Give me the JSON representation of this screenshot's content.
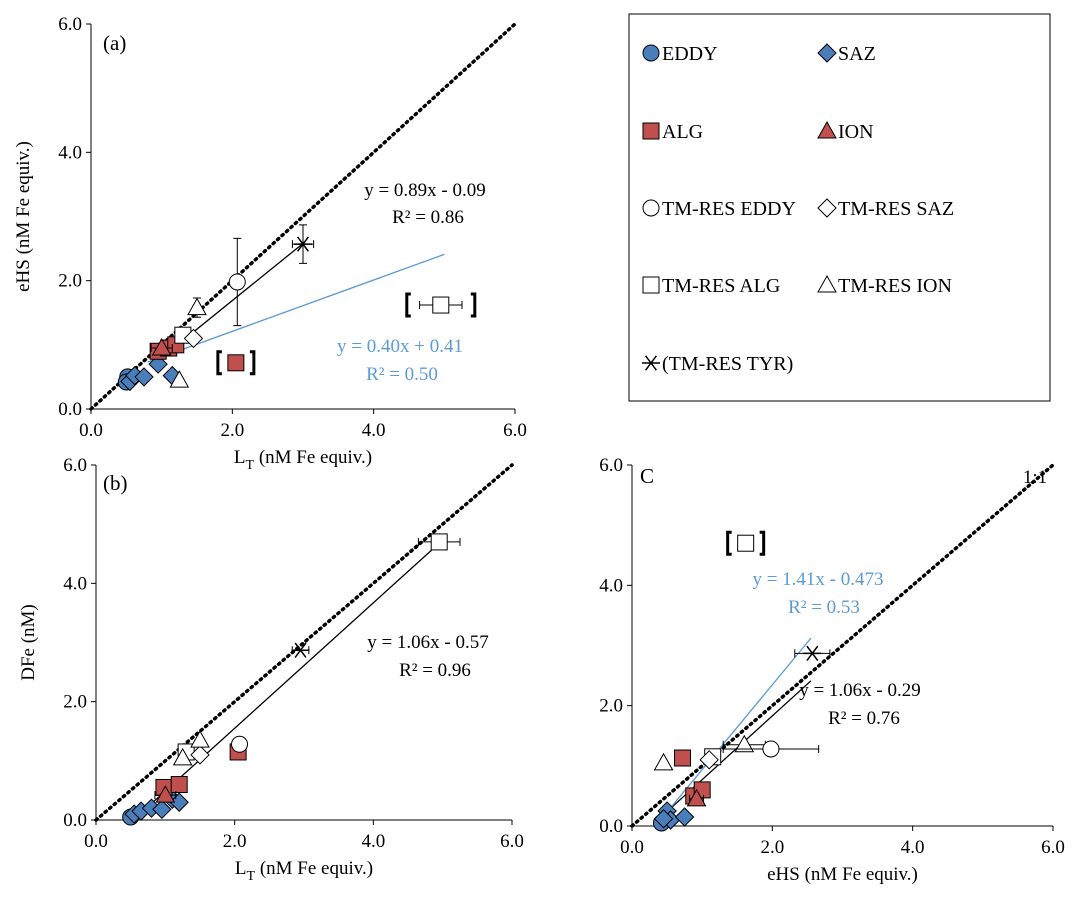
{
  "colors": {
    "blue": "#4a7ebb",
    "red": "#c0504d",
    "fitblue": "#5b9bd5",
    "black": "#000000"
  },
  "legend": [
    {
      "label": "EDDY",
      "marker": "circle",
      "fill": "#4a7ebb"
    },
    {
      "label": "SAZ",
      "marker": "diamond",
      "fill": "#4a7ebb"
    },
    {
      "label": "ALG",
      "marker": "square",
      "fill": "#c0504d"
    },
    {
      "label": "ION",
      "marker": "triangle",
      "fill": "#c0504d"
    },
    {
      "label": "TM-RES EDDY",
      "marker": "circle",
      "fill": "#ffffff"
    },
    {
      "label": "TM-RES SAZ",
      "marker": "diamond",
      "fill": "#ffffff"
    },
    {
      "label": "TM-RES ALG",
      "marker": "square",
      "fill": "#ffffff"
    },
    {
      "label": "TM-RES ION",
      "marker": "triangle",
      "fill": "#ffffff"
    },
    {
      "label": "(TM-RES TYR)",
      "marker": "star",
      "fill": "none"
    }
  ],
  "chart_data": [
    {
      "type": "scatter",
      "panel_label": "(a)",
      "xlabel": "L",
      "xlabel_sub": "T",
      "xlabel_rest": " (nM Fe equiv.)",
      "ylabel": "eHS (nM Fe equiv.)",
      "xlim": [
        0,
        6
      ],
      "ylim": [
        0,
        6
      ],
      "xticks": [
        "0.0",
        "2.0",
        "4.0",
        "6.0"
      ],
      "yticks": [
        "0.0",
        "2.0",
        "4.0",
        "6.0"
      ],
      "one_to_one": true,
      "fits": [
        {
          "slope": 0.89,
          "intercept": -0.09,
          "x": [
            0.9,
            3.0
          ],
          "color": "#000000",
          "eq": "y = 0.89x - 0.09",
          "r2": "R² = 0.86"
        },
        {
          "slope": 0.4,
          "intercept": 0.41,
          "x": [
            0.8,
            5.0
          ],
          "color": "#5b9bd5",
          "eq": "y = 0.40x + 0.41",
          "r2": "R² = 0.50"
        }
      ],
      "points": [
        {
          "x": 0.52,
          "y": 0.5,
          "m": "circle",
          "fill": "#4a7ebb"
        },
        {
          "x": 0.5,
          "y": 0.42,
          "m": "circle",
          "fill": "#4a7ebb"
        },
        {
          "x": 0.55,
          "y": 0.43,
          "m": "diamond",
          "fill": "#4a7ebb"
        },
        {
          "x": 0.62,
          "y": 0.52,
          "m": "diamond",
          "fill": "#4a7ebb"
        },
        {
          "x": 0.75,
          "y": 0.5,
          "m": "diamond",
          "fill": "#4a7ebb"
        },
        {
          "x": 0.95,
          "y": 0.7,
          "m": "diamond",
          "fill": "#4a7ebb"
        },
        {
          "x": 1.15,
          "y": 0.52,
          "m": "diamond",
          "fill": "#4a7ebb"
        },
        {
          "x": 0.95,
          "y": 0.9,
          "m": "square",
          "fill": "#c0504d",
          "xerr": 0.1
        },
        {
          "x": 1.1,
          "y": 0.95,
          "m": "square",
          "fill": "#c0504d",
          "xerr": 0.1
        },
        {
          "x": 1.2,
          "y": 1.0,
          "m": "square",
          "fill": "#c0504d"
        },
        {
          "x": 1.0,
          "y": 0.95,
          "m": "triangle",
          "fill": "#c0504d",
          "xerr": 0.15
        },
        {
          "x": 2.05,
          "y": 0.72,
          "m": "square",
          "fill": "#c0504d",
          "bracket": true
        },
        {
          "x": 1.3,
          "y": 1.15,
          "m": "square",
          "fill": "#ffffff"
        },
        {
          "x": 1.45,
          "y": 1.1,
          "m": "diamond",
          "fill": "#ffffff"
        },
        {
          "x": 1.5,
          "y": 1.58,
          "m": "triangle",
          "fill": "#ffffff",
          "yerr": 0.15
        },
        {
          "x": 1.25,
          "y": 0.45,
          "m": "triangle",
          "fill": "#ffffff"
        },
        {
          "x": 2.07,
          "y": 1.98,
          "m": "circle",
          "fill": "#ffffff",
          "yerr": 0.68
        },
        {
          "x": 3.0,
          "y": 2.57,
          "m": "star",
          "fill": "none",
          "xerr": 0.15,
          "yerr": 0.3
        },
        {
          "x": 4.95,
          "y": 1.62,
          "m": "square",
          "fill": "#ffffff",
          "xerr": 0.3,
          "bracket": true
        }
      ]
    },
    {
      "type": "scatter",
      "panel_label": "(b)",
      "xlabel": "L",
      "xlabel_sub": "T",
      "xlabel_rest": " (nM Fe equiv.)",
      "ylabel": "DFe (nM)",
      "xlim": [
        0,
        6
      ],
      "ylim": [
        0,
        6
      ],
      "xticks": [
        "0.0",
        "2.0",
        "4.0",
        "6.0"
      ],
      "yticks": [
        "0.0",
        "2.0",
        "4.0",
        "6.0"
      ],
      "one_to_one": true,
      "fits": [
        {
          "slope": 1.06,
          "intercept": -0.57,
          "x": [
            0.75,
            4.95
          ],
          "color": "#000000",
          "eq": "y = 1.06x - 0.57",
          "r2": "R² = 0.96"
        }
      ],
      "points": [
        {
          "x": 0.5,
          "y": 0.05,
          "m": "circle",
          "fill": "#4a7ebb"
        },
        {
          "x": 0.55,
          "y": 0.1,
          "m": "diamond",
          "fill": "#4a7ebb"
        },
        {
          "x": 0.65,
          "y": 0.15,
          "m": "diamond",
          "fill": "#4a7ebb"
        },
        {
          "x": 0.8,
          "y": 0.2,
          "m": "diamond",
          "fill": "#4a7ebb"
        },
        {
          "x": 0.95,
          "y": 0.18,
          "m": "diamond",
          "fill": "#4a7ebb"
        },
        {
          "x": 1.1,
          "y": 0.35,
          "m": "diamond",
          "fill": "#4a7ebb"
        },
        {
          "x": 1.2,
          "y": 0.3,
          "m": "diamond",
          "fill": "#4a7ebb"
        },
        {
          "x": 0.98,
          "y": 0.55,
          "m": "square",
          "fill": "#c0504d",
          "xerr": 0.1
        },
        {
          "x": 1.2,
          "y": 0.6,
          "m": "square",
          "fill": "#c0504d"
        },
        {
          "x": 1.0,
          "y": 0.42,
          "m": "triangle",
          "fill": "#c0504d",
          "xerr": 0.15
        },
        {
          "x": 2.05,
          "y": 1.15,
          "m": "square",
          "fill": "#c0504d"
        },
        {
          "x": 1.3,
          "y": 1.15,
          "m": "square",
          "fill": "#ffffff"
        },
        {
          "x": 1.5,
          "y": 1.1,
          "m": "diamond",
          "fill": "#ffffff"
        },
        {
          "x": 1.5,
          "y": 1.35,
          "m": "triangle",
          "fill": "#ffffff"
        },
        {
          "x": 1.25,
          "y": 1.05,
          "m": "triangle",
          "fill": "#ffffff"
        },
        {
          "x": 2.07,
          "y": 1.28,
          "m": "circle",
          "fill": "#ffffff"
        },
        {
          "x": 2.95,
          "y": 2.87,
          "m": "star",
          "fill": "none",
          "xerr": 0.12
        },
        {
          "x": 4.95,
          "y": 4.7,
          "m": "square",
          "fill": "#ffffff",
          "xerr": 0.3
        }
      ]
    },
    {
      "type": "scatter",
      "panel_label": "C",
      "ratio_label": "1:1",
      "xlabel": "eHS (nM Fe equiv.)",
      "ylabel": "",
      "xlim": [
        0,
        6
      ],
      "ylim": [
        0,
        6
      ],
      "xticks": [
        "0.0",
        "2.0",
        "4.0",
        "6.0"
      ],
      "yticks": [
        "0.0",
        "2.0",
        "4.0",
        "6.0"
      ],
      "one_to_one": true,
      "fits": [
        {
          "slope": 1.06,
          "intercept": -0.29,
          "x": [
            0.4,
            2.55
          ],
          "color": "#000000",
          "eq": "y = 1.06x - 0.29",
          "r2": "R² = 0.76"
        },
        {
          "slope": 1.41,
          "intercept": -0.473,
          "x": [
            0.4,
            2.55
          ],
          "color": "#5b9bd5",
          "eq": "y = 1.41x - 0.473",
          "r2": "R² = 0.53"
        }
      ],
      "points": [
        {
          "x": 0.42,
          "y": 0.05,
          "m": "circle",
          "fill": "#4a7ebb"
        },
        {
          "x": 0.5,
          "y": 0.25,
          "m": "diamond",
          "fill": "#4a7ebb"
        },
        {
          "x": 0.55,
          "y": 0.1,
          "m": "diamond",
          "fill": "#4a7ebb"
        },
        {
          "x": 0.75,
          "y": 0.15,
          "m": "diamond",
          "fill": "#4a7ebb"
        },
        {
          "x": 0.45,
          "y": 0.12,
          "m": "diamond",
          "fill": "#4a7ebb"
        },
        {
          "x": 0.72,
          "y": 1.13,
          "m": "square",
          "fill": "#c0504d"
        },
        {
          "x": 0.88,
          "y": 0.5,
          "m": "square",
          "fill": "#c0504d",
          "xerr": 0.1
        },
        {
          "x": 1.0,
          "y": 0.6,
          "m": "square",
          "fill": "#c0504d"
        },
        {
          "x": 0.92,
          "y": 0.45,
          "m": "triangle",
          "fill": "#c0504d",
          "xerr": 0.1
        },
        {
          "x": 1.15,
          "y": 1.15,
          "m": "square",
          "fill": "#ffffff",
          "xerr": 0.1
        },
        {
          "x": 1.1,
          "y": 1.1,
          "m": "diamond",
          "fill": "#ffffff"
        },
        {
          "x": 1.6,
          "y": 1.35,
          "m": "triangle",
          "fill": "#ffffff",
          "xerr": 0.3
        },
        {
          "x": 0.45,
          "y": 1.05,
          "m": "triangle",
          "fill": "#ffffff"
        },
        {
          "x": 1.98,
          "y": 1.28,
          "m": "circle",
          "fill": "#ffffff",
          "xerr": 0.68
        },
        {
          "x": 2.57,
          "y": 2.87,
          "m": "star",
          "fill": "none",
          "xerr": 0.25
        },
        {
          "x": 1.62,
          "y": 4.7,
          "m": "square",
          "fill": "#ffffff",
          "bracket": true
        }
      ]
    }
  ]
}
